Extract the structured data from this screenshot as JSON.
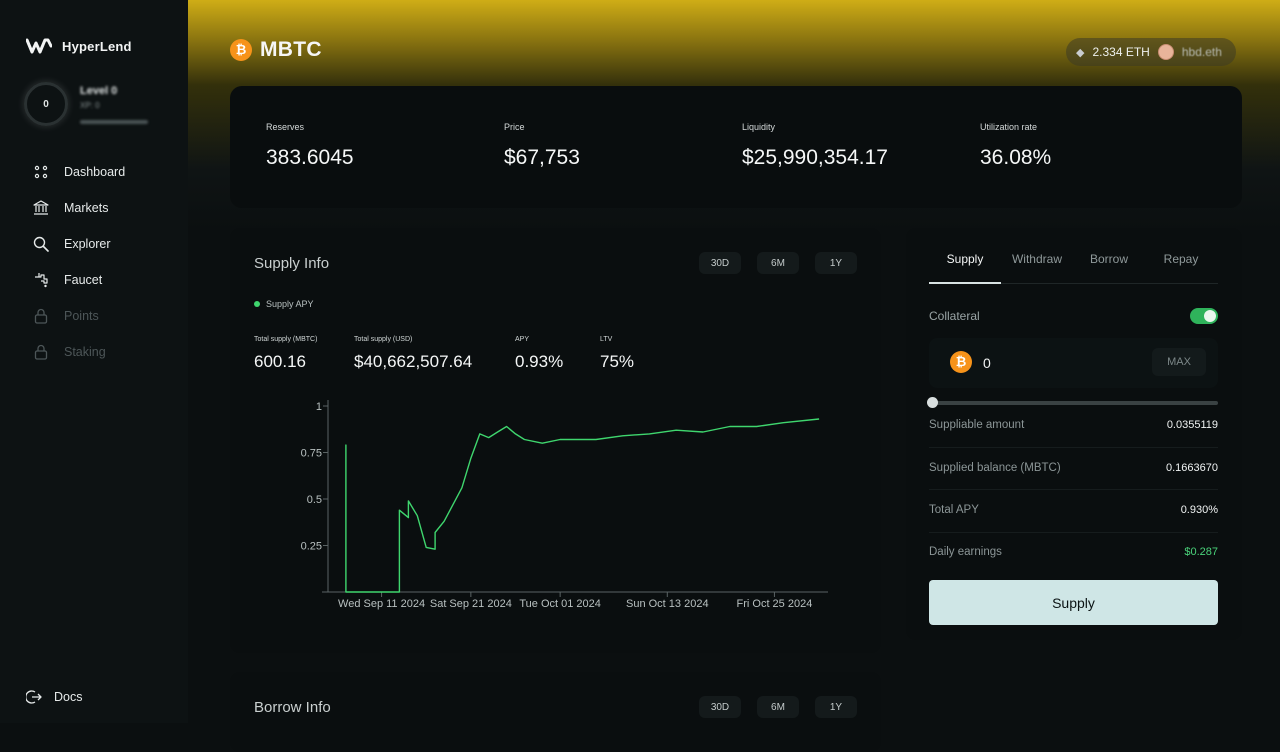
{
  "app": {
    "name": "HyperLend"
  },
  "user": {
    "level_badge": "0",
    "level_title": "Level 0",
    "xp": "XP: 0"
  },
  "sidebar": {
    "items": [
      {
        "label": "Dashboard",
        "icon": "dashboard-icon",
        "enabled": true
      },
      {
        "label": "Markets",
        "icon": "bank-icon",
        "enabled": true
      },
      {
        "label": "Explorer",
        "icon": "search-icon",
        "enabled": true
      },
      {
        "label": "Faucet",
        "icon": "faucet-icon",
        "enabled": true
      },
      {
        "label": "Points",
        "icon": "lock-icon",
        "enabled": false
      },
      {
        "label": "Staking",
        "icon": "lock-icon",
        "enabled": false
      }
    ],
    "docs": "Docs"
  },
  "header": {
    "asset": "MBTC",
    "asset_icon": "bitcoin-icon",
    "wallet_balance": "2.334 ETH",
    "ens": "hbd.eth"
  },
  "stats": {
    "reserves": {
      "label": "Reserves",
      "value": "383.6045"
    },
    "price": {
      "label": "Price",
      "value": "$67,753"
    },
    "liquidity": {
      "label": "Liquidity",
      "value": "$25,990,354.17"
    },
    "utilization": {
      "label": "Utilization rate",
      "value": "36.08%"
    }
  },
  "supply_info": {
    "title": "Supply Info",
    "ranges": [
      "30D",
      "6M",
      "1Y"
    ],
    "legend": "Supply APY",
    "metrics": [
      {
        "label": "Total supply (MBTC)",
        "value": "600.16"
      },
      {
        "label": "Total supply (USD)",
        "value": "$40,662,507.64"
      },
      {
        "label": "APY",
        "value": "0.93%"
      },
      {
        "label": "LTV",
        "value": "75%"
      }
    ]
  },
  "borrow_info": {
    "title": "Borrow Info",
    "ranges": [
      "30D",
      "6M",
      "1Y"
    ]
  },
  "action_panel": {
    "tabs": [
      "Supply",
      "Withdraw",
      "Borrow",
      "Repay"
    ],
    "active_tab": "Supply",
    "collateral_label": "Collateral",
    "collateral_enabled": true,
    "amount": "0",
    "max_label": "MAX",
    "slider_fraction": 0,
    "rows": [
      {
        "label": "Suppliable amount",
        "value": "0.0355119"
      },
      {
        "label": "Supplied balance (MBTC)",
        "value": "0.1663670"
      },
      {
        "label": "Total APY",
        "value": "0.930%"
      },
      {
        "label": "Daily earnings",
        "value": "$0.287"
      }
    ],
    "submit_label": "Supply"
  },
  "colors": {
    "accent_yellow": "#cfad16",
    "line_green": "#3fd66e",
    "btc_orange": "#f7931a",
    "button_bg": "#cfe6e6"
  },
  "chart_data": {
    "type": "line",
    "series": [
      {
        "name": "Supply APY",
        "points": [
          [
            "2024-09-07",
            0
          ],
          [
            "2024-09-07",
            0.79
          ],
          [
            "2024-09-07",
            0
          ],
          [
            "2024-09-12",
            0
          ],
          [
            "2024-09-13",
            0
          ],
          [
            "2024-09-13",
            0.05
          ],
          [
            "2024-09-13",
            0.44
          ],
          [
            "2024-09-14",
            0.4
          ],
          [
            "2024-09-14",
            0.49
          ],
          [
            "2024-09-15",
            0.41
          ],
          [
            "2024-09-16",
            0.24
          ],
          [
            "2024-09-17",
            0.23
          ],
          [
            "2024-09-17",
            0.32
          ],
          [
            "2024-09-18",
            0.38
          ],
          [
            "2024-09-19",
            0.47
          ],
          [
            "2024-09-20",
            0.56
          ],
          [
            "2024-09-21",
            0.72
          ],
          [
            "2024-09-22",
            0.85
          ],
          [
            "2024-09-23",
            0.83
          ],
          [
            "2024-09-24",
            0.86
          ],
          [
            "2024-09-25",
            0.89
          ],
          [
            "2024-09-26",
            0.85
          ],
          [
            "2024-09-27",
            0.82
          ],
          [
            "2024-09-29",
            0.8
          ],
          [
            "2024-10-01",
            0.82
          ],
          [
            "2024-10-05",
            0.82
          ],
          [
            "2024-10-08",
            0.84
          ],
          [
            "2024-10-11",
            0.85
          ],
          [
            "2024-10-14",
            0.87
          ],
          [
            "2024-10-17",
            0.86
          ],
          [
            "2024-10-20",
            0.89
          ],
          [
            "2024-10-23",
            0.89
          ],
          [
            "2024-10-26",
            0.91
          ],
          [
            "2024-10-30",
            0.93
          ]
        ]
      }
    ],
    "x_ticks": [
      "Wed Sep 11 2024",
      "Sat Sep 21 2024",
      "Tue Oct 01 2024",
      "Sun Oct 13 2024",
      "Fri Oct 25 2024"
    ],
    "x_tick_dates": [
      "2024-09-11",
      "2024-09-21",
      "2024-10-01",
      "2024-10-13",
      "2024-10-25"
    ],
    "y_ticks": [
      "1",
      "0.75",
      "0.5",
      "0.25"
    ],
    "ylim": [
      0,
      1
    ],
    "xlim": [
      "2024-09-05",
      "2024-10-31"
    ],
    "grid": false
  }
}
